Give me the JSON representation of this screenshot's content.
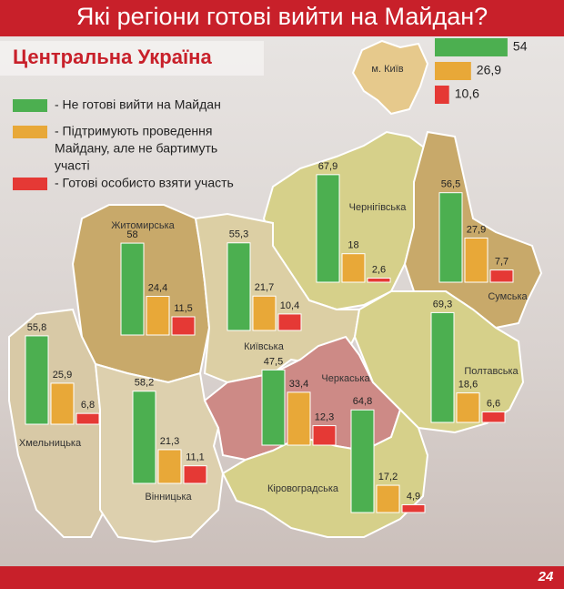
{
  "title": "Які регіони готові вийти на Майдан?",
  "subtitle": "Центральна Україна",
  "legend": [
    {
      "color": "#4caf50",
      "lines": [
        "- Не готові вийти на Майдан"
      ]
    },
    {
      "color": "#e8a838",
      "lines": [
        "- Підтримують проведення",
        "Майдану, але не бартимуть",
        "участі"
      ]
    },
    {
      "color": "#e53935",
      "lines": [
        "- Готові особисто взяти участь"
      ]
    }
  ],
  "kyiv": {
    "name": "м. Київ",
    "values": [
      54,
      26.9,
      10.6
    ],
    "value_labels": [
      "54",
      "26,9",
      "10,6"
    ]
  },
  "regions": [
    {
      "name": "Чернігівська",
      "values": [
        67.9,
        18,
        2.6
      ],
      "value_labels": [
        "67,9",
        "18",
        "2,6"
      ]
    },
    {
      "name": "Сумська",
      "values": [
        56.5,
        27.9,
        7.7
      ],
      "value_labels": [
        "56,5",
        "27,9",
        "7,7"
      ]
    },
    {
      "name": "Житомирська",
      "values": [
        58,
        24.4,
        11.5
      ],
      "value_labels": [
        "58",
        "24,4",
        "11,5"
      ]
    },
    {
      "name": "Київська",
      "values": [
        55.3,
        21.7,
        10.4
      ],
      "value_labels": [
        "55,3",
        "21,7",
        "10,4"
      ]
    },
    {
      "name": "Хмельницька",
      "values": [
        55.8,
        25.9,
        6.8
      ],
      "value_labels": [
        "55,8",
        "25,9",
        "6,8"
      ]
    },
    {
      "name": "Вінницька",
      "values": [
        58.2,
        21.3,
        11.1
      ],
      "value_labels": [
        "58,2",
        "21,3",
        "11,1"
      ]
    },
    {
      "name": "Черкаська",
      "values": [
        47.5,
        33.4,
        12.3
      ],
      "value_labels": [
        "47,5",
        "33,4",
        "12,3"
      ]
    },
    {
      "name": "Полтавська",
      "values": [
        69.3,
        18.6,
        6.6
      ],
      "value_labels": [
        "69,3",
        "18,6",
        "6,6"
      ]
    },
    {
      "name": "Кіровоградська",
      "values": [
        64.8,
        17.2,
        4.9
      ],
      "value_labels": [
        "64,8",
        "17,2",
        "4,9"
      ]
    }
  ],
  "logo": "24"
}
